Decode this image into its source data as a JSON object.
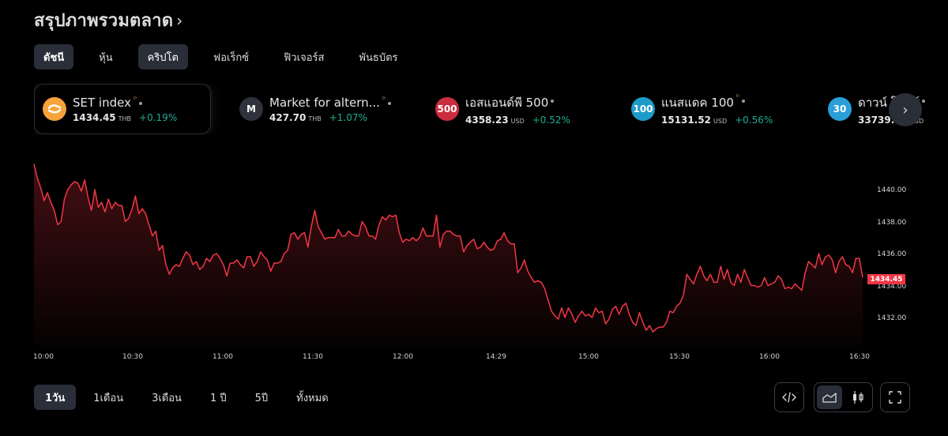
{
  "header": {
    "title": "สรุปภาพรวมตลาด",
    "chevron": "›"
  },
  "tabs": [
    {
      "label": "ดัชนี",
      "state": "active"
    },
    {
      "label": "หุ้น",
      "state": ""
    },
    {
      "label": "คริปโต",
      "state": "hover"
    },
    {
      "label": "ฟอเร็กซ์",
      "state": ""
    },
    {
      "label": "ฟิวเจอร์ส",
      "state": ""
    },
    {
      "label": "พันธบัตร",
      "state": ""
    }
  ],
  "tickers": [
    {
      "name": "SET index",
      "logo_text": "",
      "logo_color": "#f5a33a",
      "price": "1434.45",
      "currency": "THB",
      "change": "+0.19%",
      "has_sup": true,
      "selected": true
    },
    {
      "name": "Market for altern...",
      "logo_text": "M",
      "logo_color": "#2f323c",
      "price": "427.70",
      "currency": "THB",
      "change": "+1.07%",
      "has_sup": true,
      "selected": false
    },
    {
      "name": "เอสแอนด์พี 500",
      "logo_text": "500",
      "logo_color": "#cc2c3f",
      "price": "4358.23",
      "currency": "USD",
      "change": "+0.52%",
      "has_sup": false,
      "selected": false
    },
    {
      "name": "แนสแดค 100",
      "logo_text": "100",
      "logo_color": "#1e9bc8",
      "price": "15131.52",
      "currency": "USD",
      "change": "+0.56%",
      "has_sup": true,
      "selected": false
    },
    {
      "name": "ดาวน์ โจนส์",
      "logo_text": "30",
      "logo_color": "#2a9fd8",
      "price": "33739.30",
      "currency": "USD",
      "change": "",
      "has_sup": false,
      "selected": false
    }
  ],
  "next_button": {
    "icon": "chevron-right",
    "glyph": "›"
  },
  "chart_data": {
    "type": "area",
    "title": "SET index",
    "xlabel": "",
    "ylabel": "",
    "line_color": "#f23645",
    "ylim": [
      1430.9,
      1441.8
    ],
    "y_ticks": [
      "1440.00",
      "1438.00",
      "1436.00",
      "1434.00",
      "1432.00"
    ],
    "x_ticks": [
      "10:00",
      "10:30",
      "11:00",
      "11:30",
      "12:00",
      "14:29",
      "15:00",
      "15:30",
      "16:00",
      "16:30"
    ],
    "last_price": "1434.45",
    "grid": false,
    "points": [
      1441.7,
      1440.8,
      1440.2,
      1439.4,
      1439.9,
      1439.3,
      1438.8,
      1437.9,
      1438.1,
      1439.5,
      1440.1,
      1440.4,
      1440.6,
      1440.5,
      1440.0,
      1440.7,
      1439.6,
      1438.8,
      1440.1,
      1439.0,
      1439.3,
      1438.7,
      1439.5,
      1438.9,
      1439.3,
      1439.1,
      1439.1,
      1438.1,
      1438.3,
      1438.9,
      1439.7,
      1438.6,
      1438.9,
      1438.6,
      1437.9,
      1437.2,
      1437.5,
      1436.3,
      1436.6,
      1435.4,
      1434.8,
      1435.2,
      1435.4,
      1435.3,
      1435.8,
      1436.2,
      1436.0,
      1435.4,
      1435.6,
      1435.1,
      1435.3,
      1435.8,
      1435.6,
      1436.0,
      1436.1,
      1435.8,
      1435.4,
      1434.7,
      1435.5,
      1435.5,
      1435.7,
      1435.4,
      1435.2,
      1435.9,
      1435.9,
      1435.3,
      1435.6,
      1436.2,
      1435.9,
      1435.7,
      1435.0,
      1435.5,
      1435.5,
      1435.6,
      1436.1,
      1436.3,
      1437.3,
      1437.4,
      1437.0,
      1437.3,
      1437.4,
      1436.5,
      1437.8,
      1438.8,
      1437.8,
      1437.4,
      1437.0,
      1437.1,
      1437.1,
      1437.1,
      1437.6,
      1437.2,
      1437.2,
      1437.5,
      1437.3,
      1437.2,
      1437.2,
      1438.1,
      1437.8,
      1437.2,
      1437.2,
      1437.0,
      1437.9,
      1438.4,
      1438.2,
      1438.5,
      1438.4,
      1438.5,
      1437.4,
      1436.8,
      1437.0,
      1436.9,
      1437.1,
      1436.9,
      1437.1,
      1437.7,
      1437.2,
      1437.2,
      1437.2,
      1438.5,
      1436.5,
      1437.3,
      1437.5,
      1437.5,
      1437.3,
      1437.2,
      1437.2,
      1436.2,
      1436.6,
      1436.8,
      1437.0,
      1436.4,
      1436.5,
      1436.8,
      1436.5,
      1436.3,
      1436.4,
      1436.9,
      1437.0,
      1437.4,
      1436.9,
      1436.7,
      1436.7,
      1434.9,
      1435.2,
      1435.7,
      1435.0,
      1434.6,
      1434.3,
      1434.4,
      1434.3,
      1433.9,
      1433.2,
      1432.5,
      1432.2,
      1432.0,
      1432.7,
      1432.1,
      1432.7,
      1432.3,
      1431.8,
      1432.2,
      1432.5,
      1432.2,
      1432.3,
      1432.1,
      1432.7,
      1432.4,
      1432.5,
      1431.7,
      1432.0,
      1432.6,
      1432.8,
      1432.3,
      1432.8,
      1433.0,
      1432.3,
      1431.8,
      1431.6,
      1432.4,
      1431.8,
      1431.3,
      1431.6,
      1431.2,
      1431.4,
      1431.5,
      1431.5,
      1431.8,
      1432.5,
      1432.4,
      1432.8,
      1433.0,
      1433.5,
      1434.8,
      1434.5,
      1434.2,
      1434.8,
      1435.3,
      1434.7,
      1434.4,
      1434.8,
      1434.3,
      1434.3,
      1435.3,
      1434.5,
      1435.1,
      1434.3,
      1434.1,
      1434.8,
      1434.3,
      1435.1,
      1434.6,
      1434.1,
      1434.1,
      1434.0,
      1434.1,
      1434.6,
      1434.1,
      1434.2,
      1434.3,
      1434.7,
      1434.5,
      1433.9,
      1434.0,
      1433.9,
      1434.2,
      1434.0,
      1433.8,
      1434.9,
      1435.6,
      1435.4,
      1435.2,
      1436.1,
      1435.4,
      1435.9,
      1436.0,
      1435.7,
      1434.9,
      1435.6,
      1435.9,
      1435.4,
      1435.3,
      1434.9,
      1435.8,
      1435.8,
      1434.6
    ]
  },
  "ranges": [
    {
      "label": "1วัน",
      "active": true
    },
    {
      "label": "1เดือน",
      "active": false
    },
    {
      "label": "3เดือน",
      "active": false
    },
    {
      "label": "1 ปี",
      "active": false
    },
    {
      "label": "5ปี",
      "active": false
    },
    {
      "label": "ทั้งหมด",
      "active": false
    }
  ],
  "tools": {
    "embed": "code-embed",
    "area": "area-chart",
    "candles": "candlestick-chart",
    "fullscreen": "fullscreen"
  }
}
